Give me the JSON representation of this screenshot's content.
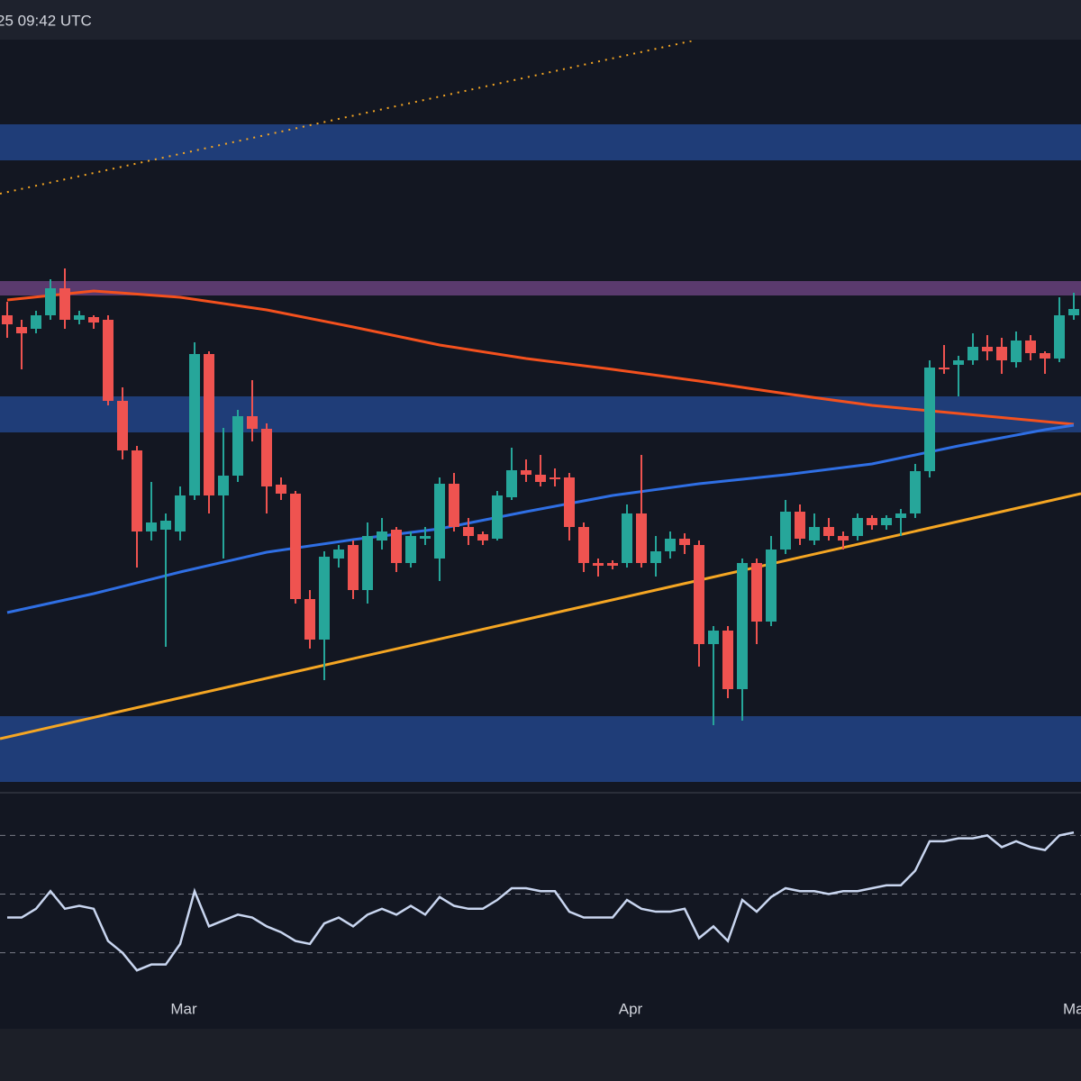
{
  "chart_data": {
    "type": "candlestick",
    "header": "25 09:42 UTC",
    "categories": [
      null,
      null,
      null,
      null,
      null,
      null,
      null,
      null,
      null,
      null,
      null,
      null,
      "Mar",
      null,
      null,
      null,
      null,
      null,
      null,
      null,
      null,
      null,
      null,
      null,
      null,
      null,
      null,
      null,
      null,
      null,
      null,
      null,
      null,
      null,
      null,
      null,
      null,
      null,
      null,
      null,
      null,
      null,
      null,
      "Apr",
      null,
      null,
      null,
      null,
      null,
      null,
      null,
      null,
      null,
      null,
      null,
      null,
      null,
      null,
      null,
      null,
      null,
      null,
      null,
      null,
      null,
      null,
      null,
      null,
      null,
      null,
      null,
      null,
      null,
      null,
      "May"
    ],
    "open": [
      520,
      507,
      505,
      520,
      550,
      515,
      518,
      515,
      425,
      370,
      280,
      282,
      280,
      320,
      477,
      320,
      342,
      408,
      394,
      332,
      322,
      205,
      160,
      250,
      265,
      215,
      270,
      282,
      245,
      272,
      250,
      333,
      285,
      277,
      272,
      318,
      348,
      343,
      340,
      340,
      285,
      245,
      245,
      245,
      300,
      245,
      258,
      272,
      265,
      155,
      170,
      105,
      245,
      180,
      260,
      302,
      270,
      285,
      275,
      275,
      295,
      287,
      295,
      300,
      347,
      462,
      465,
      470,
      485,
      485,
      468,
      492,
      478,
      472,
      520
    ],
    "high": [
      535,
      515,
      525,
      560,
      572,
      525,
      520,
      520,
      440,
      375,
      335,
      300,
      330,
      490,
      480,
      395,
      415,
      448,
      400,
      340,
      325,
      215,
      258,
      265,
      270,
      290,
      295,
      285,
      280,
      285,
      340,
      345,
      295,
      280,
      325,
      373,
      360,
      365,
      350,
      345,
      290,
      250,
      248,
      310,
      365,
      275,
      280,
      278,
      270,
      175,
      175,
      250,
      250,
      275,
      315,
      310,
      300,
      295,
      280,
      300,
      298,
      298,
      305,
      355,
      470,
      487,
      475,
      500,
      498,
      495,
      502,
      498,
      480,
      540,
      545
    ],
    "low": [
      495,
      460,
      500,
      515,
      505,
      510,
      505,
      420,
      360,
      240,
      270,
      152,
      270,
      315,
      300,
      250,
      335,
      380,
      300,
      315,
      200,
      150,
      115,
      240,
      205,
      200,
      260,
      235,
      240,
      265,
      225,
      280,
      265,
      265,
      270,
      315,
      335,
      330,
      330,
      270,
      235,
      230,
      238,
      240,
      240,
      230,
      250,
      255,
      130,
      65,
      95,
      70,
      155,
      175,
      255,
      265,
      265,
      270,
      260,
      270,
      282,
      282,
      275,
      295,
      340,
      455,
      430,
      465,
      470,
      455,
      462,
      470,
      455,
      468,
      515
    ],
    "close": [
      510,
      500,
      520,
      550,
      515,
      520,
      512,
      425,
      370,
      280,
      290,
      292,
      320,
      477,
      320,
      342,
      408,
      394,
      330,
      322,
      205,
      160,
      252,
      260,
      215,
      275,
      280,
      245,
      275,
      275,
      333,
      285,
      275,
      270,
      320,
      348,
      343,
      335,
      338,
      285,
      245,
      242,
      242,
      300,
      245,
      258,
      272,
      265,
      155,
      170,
      105,
      245,
      180,
      260,
      302,
      272,
      285,
      275,
      270,
      295,
      287,
      295,
      300,
      347,
      462,
      460,
      470,
      485,
      480,
      470,
      492,
      478,
      472,
      520,
      527
    ],
    "up_color": "#26a69a",
    "down_color": "#ef5350",
    "xlim": [
      -0.5,
      74.5
    ],
    "ylim": [
      0,
      825
    ],
    "lines": [
      {
        "color": "#f4511e",
        "x": [
          0,
          6,
          12,
          18,
          24,
          30,
          36,
          42,
          48,
          54,
          60,
          66,
          72,
          74
        ],
        "values": [
          537,
          547,
          540,
          526,
          507,
          487,
          472,
          460,
          447,
          433,
          420,
          411,
          402,
          399
        ]
      },
      {
        "color": "#2f6fe4",
        "x": [
          0,
          6,
          12,
          18,
          24,
          30,
          36,
          42,
          48,
          54,
          60,
          66,
          72,
          74
        ],
        "values": [
          190,
          211,
          235,
          257,
          271,
          283,
          302,
          320,
          333,
          343,
          355,
          375,
          393,
          398
        ]
      },
      {
        "color": "#f5a623",
        "x": [
          -0.5,
          74.5
        ],
        "values": [
          50,
          322
        ]
      },
      {
        "color": "#f5a623",
        "dashed": true,
        "x": [
          -0.5,
          47.6
        ],
        "values": [
          655,
          825
        ]
      }
    ],
    "zones": [
      {
        "color": "#1f3d78",
        "range": [
          692,
          732
        ]
      },
      {
        "color": "#1f3d78",
        "range": [
          390,
          430
        ]
      },
      {
        "color": "#1f3d78",
        "range": [
          2,
          75
        ]
      },
      {
        "color": "#5a3a6e",
        "range": [
          542,
          558
        ]
      }
    ],
    "rsi": {
      "color": "#c9d6f0",
      "ylim": [
        17,
        83
      ],
      "levels": [
        70,
        50,
        30
      ],
      "values": [
        42,
        42,
        45,
        51,
        45,
        46,
        45,
        34,
        30,
        24,
        26,
        26,
        33,
        51,
        39,
        41,
        43,
        42,
        39,
        37,
        34,
        33,
        40,
        42,
        39,
        43,
        45,
        43,
        46,
        43,
        49,
        46,
        45,
        45,
        48,
        52,
        52,
        51,
        51,
        44,
        42,
        42,
        42,
        48,
        45,
        44,
        44,
        45,
        35,
        39,
        34,
        48,
        44,
        49,
        52,
        51,
        51,
        50,
        51,
        51,
        52,
        53,
        53,
        58,
        68,
        68,
        69,
        69,
        70,
        66,
        68,
        66,
        65,
        70,
        71
      ]
    }
  }
}
